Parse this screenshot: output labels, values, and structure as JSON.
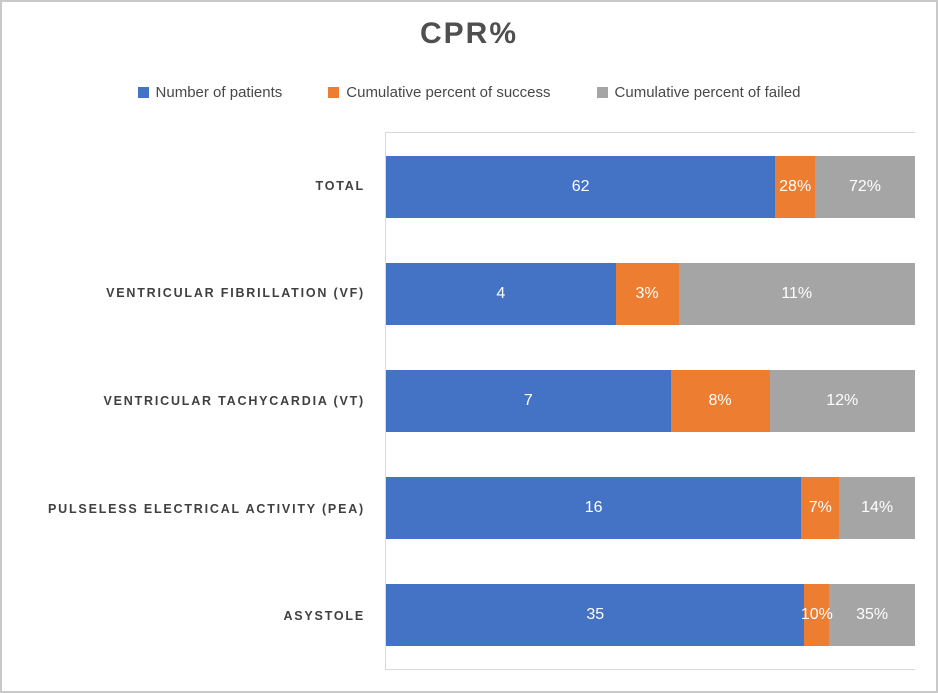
{
  "page": {
    "background": "#ffffff",
    "border_color": "#c9c9c9",
    "plot_border_color": "#d9d9d9"
  },
  "chart_data": {
    "type": "bar",
    "orientation": "horizontal",
    "stacked": "percent",
    "title": "CPR%",
    "xlabel": "",
    "ylabel": "",
    "grid": "off",
    "legend_position": "top",
    "categories": [
      "TOTAL",
      "VENTRICULAR FIBRILLATION (VF)",
      "VENTRICULAR TACHYCARDIA (VT)",
      "PULSELESS ELECTRICAL ACTIVITY (PEA)",
      "ASYSTOLE"
    ],
    "series": [
      {
        "key": "patients",
        "name": "Number of patients",
        "color": "#4472C4",
        "values": [
          62,
          4,
          7,
          16,
          35
        ]
      },
      {
        "key": "success",
        "name": "Cumulative percent of success",
        "color": "#ED7D31",
        "values": [
          "28%",
          "3%",
          "8%",
          "7%",
          "10%"
        ]
      },
      {
        "key": "failed",
        "name": "Cumulative percent of failed",
        "color": "#A5A5A5",
        "values": [
          "72%",
          "11%",
          "12%",
          "14%",
          "35%"
        ]
      }
    ],
    "rows": [
      {
        "category": "TOTAL",
        "segments": [
          {
            "label": "62",
            "width_pct": 73.6
          },
          {
            "label": "28%",
            "width_pct": 7.5
          },
          {
            "label": "72%",
            "width_pct": 18.9
          }
        ]
      },
      {
        "category": "VENTRICULAR FIBRILLATION (VF)",
        "segments": [
          {
            "label": "4",
            "width_pct": 43.4
          },
          {
            "label": "3%",
            "width_pct": 11.9
          },
          {
            "label": "11%",
            "width_pct": 44.7
          }
        ]
      },
      {
        "category": "VENTRICULAR TACHYCARDIA (VT)",
        "segments": [
          {
            "label": "7",
            "width_pct": 53.8
          },
          {
            "label": "8%",
            "width_pct": 18.7
          },
          {
            "label": "12%",
            "width_pct": 27.5
          }
        ]
      },
      {
        "category": "PULSELESS ELECTRICAL ACTIVITY (PEA)",
        "segments": [
          {
            "label": "16",
            "width_pct": 78.5
          },
          {
            "label": "7%",
            "width_pct": 7.2
          },
          {
            "label": "14%",
            "width_pct": 14.3
          }
        ]
      },
      {
        "category": "ASYSTOLE",
        "segments": [
          {
            "label": "35",
            "width_pct": 79.1
          },
          {
            "label": "10%",
            "width_pct": 4.7
          },
          {
            "label": "35%",
            "width_pct": 16.2
          }
        ]
      }
    ]
  }
}
